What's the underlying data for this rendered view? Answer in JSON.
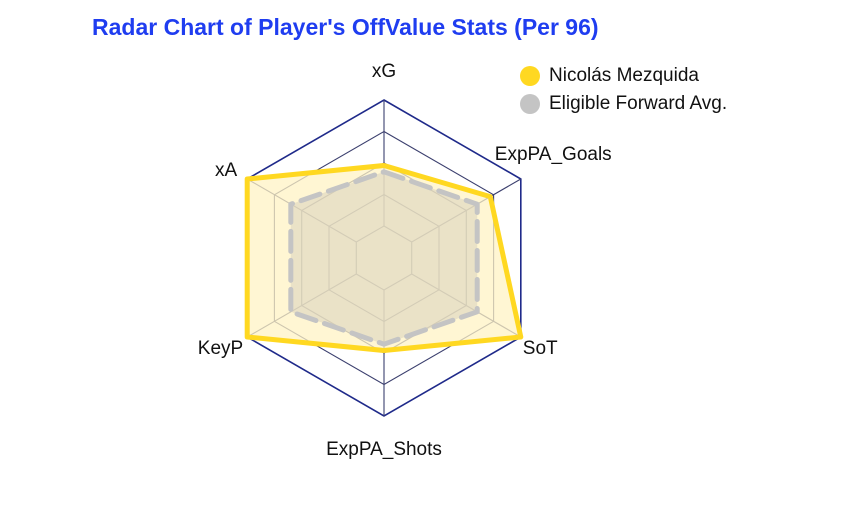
{
  "title": "Radar Chart of Player's OffValue Stats (Per 96)",
  "chart_data": {
    "type": "radar",
    "title": "Radar Chart of Player's OffValue Stats (Per 96)",
    "axes": [
      "xG",
      "ExpPA_Goals",
      "SoT",
      "ExpPA_Shots",
      "KeyP",
      "xA"
    ],
    "range": [
      0,
      1
    ],
    "grid_levels": 5,
    "legend_position": "top-right",
    "series": [
      {
        "name": "Nicolás Mezquida",
        "values": [
          0.48,
          0.72,
          1.0,
          0.48,
          1.0,
          1.0
        ],
        "color": "#ffd821",
        "fill_color": "#fff3c4",
        "line_style": "solid"
      },
      {
        "name": "Eligible Forward Avg.",
        "values": [
          0.43,
          0.6,
          0.6,
          0.43,
          0.6,
          0.6
        ],
        "color": "#c4c4c4",
        "fill_color": "#d9d2be",
        "line_style": "dashed"
      }
    ],
    "grid_color": "#1f2a8a"
  }
}
